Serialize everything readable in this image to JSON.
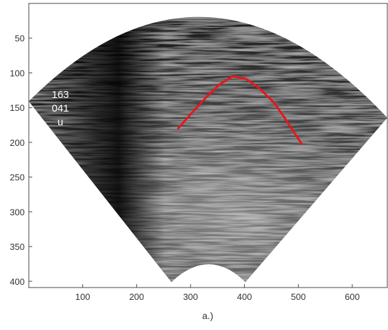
{
  "chart_data": {
    "type": "line",
    "xlabel": "a.)",
    "annotations": [
      "163",
      "041",
      "u"
    ],
    "x": [
      277,
      302,
      328,
      353,
      378,
      404,
      429,
      455,
      474,
      506
    ],
    "values": [
      180,
      158,
      136,
      117,
      105,
      109,
      123,
      143,
      164,
      202
    ],
    "color": "#e8141c",
    "xlim": [
      0,
      665
    ],
    "ylim": [
      0,
      409
    ],
    "y_reversed": true,
    "xticks": [
      100,
      200,
      300,
      400,
      500,
      600
    ],
    "yticks": [
      50,
      100,
      150,
      200,
      250,
      300,
      350,
      400
    ]
  }
}
